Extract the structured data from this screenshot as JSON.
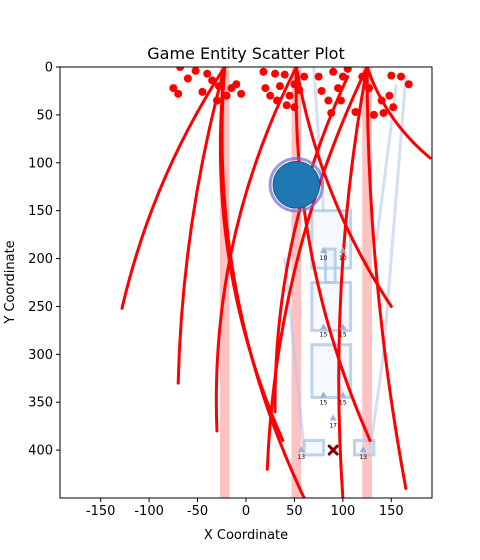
{
  "chart_data": {
    "type": "scatter",
    "title": "Game Entity Scatter Plot",
    "xlabel": "X Coordinate",
    "ylabel": "Y Coordinate",
    "xlim": [
      -192,
      192
    ],
    "ylim": [
      0,
      450
    ],
    "y_inverted": true,
    "grid": false,
    "x_ticks": [
      "-150",
      "-100",
      "-50",
      "0",
      "50",
      "100",
      "150"
    ],
    "x_tick_values": [
      -150,
      -100,
      -50,
      0,
      50,
      100,
      150
    ],
    "y_ticks": [
      "0",
      "50",
      "100",
      "150",
      "200",
      "250",
      "300",
      "350",
      "400"
    ],
    "y_tick_values": [
      0,
      50,
      100,
      150,
      200,
      250,
      300,
      350,
      400
    ],
    "colors": {
      "red": "#ff0000",
      "lane": "#ffb3b3",
      "structure": "#aec7e8",
      "structure_fill": "#dde8f5",
      "hero": "#1f77b4",
      "hero_ring": "#6b6bd6",
      "unit": "#99aacc",
      "marker_x": "#8b0000"
    },
    "lanes": [
      {
        "x": -22,
        "width": 10
      },
      {
        "x": 52,
        "width": 10
      },
      {
        "x": 125,
        "width": 10
      }
    ],
    "hero": {
      "x": 52,
      "y": 123,
      "r": 24
    },
    "x_marker": {
      "x": 90,
      "y": 400
    },
    "red_points": [
      {
        "x": -68,
        "y": 0
      },
      {
        "x": -52,
        "y": 4
      },
      {
        "x": -40,
        "y": 7
      },
      {
        "x": -60,
        "y": 12
      },
      {
        "x": -35,
        "y": 14
      },
      {
        "x": -28,
        "y": 20
      },
      {
        "x": -75,
        "y": 22
      },
      {
        "x": -70,
        "y": 28
      },
      {
        "x": -15,
        "y": 22
      },
      {
        "x": -10,
        "y": 18
      },
      {
        "x": -20,
        "y": 30
      },
      {
        "x": -5,
        "y": 28
      },
      {
        "x": -45,
        "y": 26
      },
      {
        "x": -30,
        "y": 35
      },
      {
        "x": 18,
        "y": 5
      },
      {
        "x": 30,
        "y": 7
      },
      {
        "x": 20,
        "y": 22
      },
      {
        "x": 25,
        "y": 30
      },
      {
        "x": 35,
        "y": 20
      },
      {
        "x": 40,
        "y": 8
      },
      {
        "x": 45,
        "y": 30
      },
      {
        "x": 50,
        "y": 18
      },
      {
        "x": 55,
        "y": 24
      },
      {
        "x": 42,
        "y": 40
      },
      {
        "x": 50,
        "y": 42
      },
      {
        "x": 32,
        "y": 35
      },
      {
        "x": 60,
        "y": 10
      },
      {
        "x": 75,
        "y": 10
      },
      {
        "x": 78,
        "y": 25
      },
      {
        "x": 85,
        "y": 35
      },
      {
        "x": 90,
        "y": 5
      },
      {
        "x": 95,
        "y": 22
      },
      {
        "x": 100,
        "y": 10
      },
      {
        "x": 98,
        "y": 35
      },
      {
        "x": 105,
        "y": 2
      },
      {
        "x": 88,
        "y": 48
      },
      {
        "x": 113,
        "y": 47
      },
      {
        "x": 120,
        "y": 10
      },
      {
        "x": 127,
        "y": 22
      },
      {
        "x": 132,
        "y": 50
      },
      {
        "x": 142,
        "y": 48
      },
      {
        "x": 148,
        "y": 30
      },
      {
        "x": 152,
        "y": 42
      },
      {
        "x": 160,
        "y": 10
      },
      {
        "x": 168,
        "y": 18
      },
      {
        "x": 150,
        "y": 9
      },
      {
        "x": 140,
        "y": 35
      }
    ],
    "red_arcs": [
      {
        "x0": -128,
        "y0": 252,
        "x1": -22,
        "y1": 0,
        "bend": -12
      },
      {
        "x0": -22,
        "y0": 0,
        "x1": 38,
        "y1": 390,
        "bend": 26
      },
      {
        "x0": -30,
        "y0": 380,
        "x1": 52,
        "y1": 0,
        "bend": -25
      },
      {
        "x0": 52,
        "y0": 0,
        "x1": 128,
        "y1": 390,
        "bend": 22
      },
      {
        "x0": 22,
        "y0": 420,
        "x1": 125,
        "y1": 0,
        "bend": -22
      },
      {
        "x0": 125,
        "y0": 0,
        "x1": 190,
        "y1": 95,
        "bend": 8
      },
      {
        "x0": -22,
        "y0": 0,
        "x1": 60,
        "y1": 450,
        "bend": 30
      },
      {
        "x0": 52,
        "y0": 0,
        "x1": 150,
        "y1": 250,
        "bend": 14
      },
      {
        "x0": 125,
        "y0": 0,
        "x1": 165,
        "y1": 440,
        "bend": 10
      },
      {
        "x0": 100,
        "y0": 450,
        "x1": 125,
        "y1": 0,
        "bend": -14
      },
      {
        "x0": -70,
        "y0": 330,
        "x1": -22,
        "y1": 0,
        "bend": -10
      },
      {
        "x0": 30,
        "y0": 360,
        "x1": 105,
        "y1": 10,
        "bend": -20
      }
    ],
    "structures": [
      {
        "x0": 68,
        "y0": 150,
        "x1": 108,
        "y1": 210
      },
      {
        "x0": 68,
        "y0": 225,
        "x1": 108,
        "y1": 275
      },
      {
        "x0": 68,
        "y0": 290,
        "x1": 108,
        "y1": 345
      },
      {
        "x0": 82,
        "y0": 190,
        "x1": 92,
        "y1": 225
      },
      {
        "x0": 60,
        "y0": 390,
        "x1": 80,
        "y1": 405
      },
      {
        "x0": 112,
        "y0": 390,
        "x1": 132,
        "y1": 405
      }
    ],
    "structure_lines": [
      {
        "x0": 165,
        "y0": 10,
        "x1": 142,
        "y1": 300
      },
      {
        "x0": 142,
        "y0": 300,
        "x1": 128,
        "y1": 400
      },
      {
        "x0": 40,
        "y0": 200,
        "x1": 60,
        "y1": 400
      },
      {
        "x0": 70,
        "y0": 0,
        "x1": 80,
        "y1": 150
      },
      {
        "x0": 155,
        "y0": 20,
        "x1": 135,
        "y1": 180
      }
    ],
    "units": [
      {
        "x": 80,
        "y": 192,
        "label": "10"
      },
      {
        "x": 100,
        "y": 192,
        "label": "10"
      },
      {
        "x": 80,
        "y": 272,
        "label": "15"
      },
      {
        "x": 100,
        "y": 272,
        "label": "15"
      },
      {
        "x": 80,
        "y": 343,
        "label": "15"
      },
      {
        "x": 100,
        "y": 343,
        "label": "15"
      },
      {
        "x": 90,
        "y": 367,
        "label": "17"
      },
      {
        "x": 57,
        "y": 400,
        "label": "13"
      },
      {
        "x": 121,
        "y": 400,
        "label": "13"
      }
    ]
  }
}
